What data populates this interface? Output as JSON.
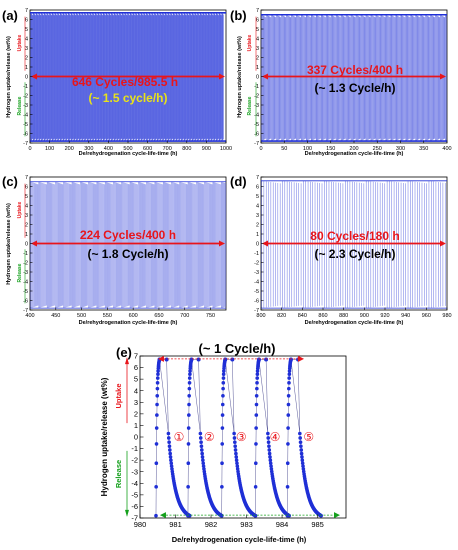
{
  "colors": {
    "data": "#1f2fd6",
    "red": "#e8151b",
    "green": "#14a01c",
    "yellow": "#e8e21a"
  },
  "chart_data": [
    {
      "id": "a",
      "type": "line",
      "panel_label": "(a)",
      "xlim": [
        0,
        1000
      ],
      "ylim": [
        -7,
        7
      ],
      "xticks": [
        0,
        100,
        200,
        300,
        400,
        500,
        600,
        700,
        800,
        900,
        1000
      ],
      "yticks": [
        -7,
        -6,
        -5,
        -4,
        -3,
        -2,
        -1,
        0,
        1,
        2,
        3,
        4,
        5,
        6,
        7
      ],
      "xlabel": "De/rehydrogenation cycle-life-time (h)",
      "ylabel": "Hydrogen uptake/release (wt%)",
      "uptake_label": "Uptake",
      "release_label": "Release",
      "annotation_main": "646 Cycles/985.5 h",
      "annotation_rate": "(~ 1.5 cycle/h)",
      "cycles": 646,
      "time_h": 985.5,
      "y_max": 6.7,
      "y_min": -6.8
    },
    {
      "id": "b",
      "type": "line",
      "panel_label": "(b)",
      "xlim": [
        0,
        400
      ],
      "ylim": [
        -7,
        7
      ],
      "xticks": [
        0,
        50,
        100,
        150,
        200,
        250,
        300,
        350,
        400
      ],
      "yticks": [
        -7,
        -6,
        -5,
        -4,
        -3,
        -2,
        -1,
        0,
        1,
        2,
        3,
        4,
        5,
        6,
        7
      ],
      "xlabel": "De/rehydrogenation cycle-life-time (h)",
      "ylabel": "Hydrogen uptake/release (wt%)",
      "uptake_label": "Uptake",
      "release_label": "Release",
      "annotation_main": "337 Cycles/400 h",
      "annotation_rate": "(~ 1.3 Cycle/h)",
      "cycles": 337,
      "time_h": 400,
      "y_max": 6.5,
      "y_min": -6.8
    },
    {
      "id": "c",
      "type": "line",
      "panel_label": "(c)",
      "xlim": [
        400,
        780
      ],
      "ylim": [
        -7,
        7
      ],
      "xticks": [
        400,
        450,
        500,
        550,
        600,
        650,
        700,
        750
      ],
      "yticks": [
        -7,
        -6,
        -5,
        -4,
        -3,
        -2,
        -1,
        0,
        1,
        2,
        3,
        4,
        5,
        6,
        7
      ],
      "xlabel": "De/rehydrogenation cycle-life-time (h)",
      "ylabel": "Hydrogen uptake/release (wt%)",
      "uptake_label": "Uptake",
      "release_label": "Release",
      "annotation_main": "224 Cycles/400 h",
      "annotation_rate": "(~ 1.8 Cycle/h)",
      "cycles": 224,
      "time_h": 400,
      "y_max": 6.5,
      "y_min": -6.8
    },
    {
      "id": "d",
      "type": "line",
      "panel_label": "(d)",
      "xlim": [
        800,
        980
      ],
      "ylim": [
        -7,
        7
      ],
      "xticks": [
        800,
        820,
        840,
        860,
        880,
        900,
        920,
        940,
        960,
        980
      ],
      "yticks": [
        -7,
        -6,
        -5,
        -4,
        -3,
        -2,
        -1,
        0,
        1,
        2,
        3,
        4,
        5,
        6,
        7
      ],
      "xlabel": "De/rehydrogenation cycle-life-time (h)",
      "ylabel": "",
      "annotation_main": "80 Cycles/180 h",
      "annotation_rate": "(~ 2.3 Cycle/h)",
      "cycles": 80,
      "time_h": 180,
      "y_max": 6.6,
      "y_min": -6.8
    },
    {
      "id": "e",
      "type": "scatter",
      "panel_label": "(e)",
      "xlim": [
        980,
        985.8
      ],
      "ylim": [
        -7,
        7
      ],
      "xticks": [
        980,
        981,
        982,
        983,
        984,
        985
      ],
      "yticks": [
        -7,
        -6,
        -5,
        -4,
        -3,
        -2,
        -1,
        0,
        1,
        2,
        3,
        4,
        5,
        6,
        7
      ],
      "xlabel": "De/rehydrogenation cycle-life-time (h)",
      "ylabel": "Hydrogen uptake/release (wt%)",
      "uptake_label": "Uptake",
      "release_label": "Release",
      "title": "(~ 1 Cycle/h)",
      "cycle_labels": [
        "①",
        "②",
        "③",
        "④",
        "⑤"
      ],
      "cycle_label_x": [
        981.1,
        981.95,
        982.85,
        983.8,
        984.75
      ],
      "cycle_label_y": 0,
      "cycle_starts": [
        980.45,
        981.35,
        982.3,
        983.25,
        984.15
      ],
      "uptake_duration_h": 0.1,
      "plateau_duration_h": 0.2,
      "release_duration_h": 0.6,
      "y_max": 6.7,
      "y_min": -6.8
    }
  ]
}
